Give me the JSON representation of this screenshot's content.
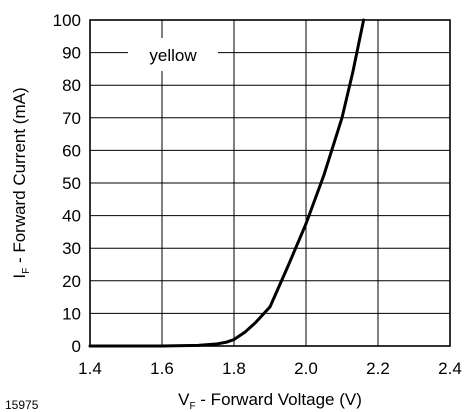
{
  "figure_number": "15975",
  "chart_data": {
    "type": "line",
    "xlabel": {
      "symbol": "V",
      "subscript": "F",
      "text": " - Forward Voltage (V)"
    },
    "ylabel": {
      "symbol": "I",
      "subscript": "F",
      "text": " - Forward Current (mA)"
    },
    "xlim": [
      1.4,
      2.4
    ],
    "ylim": [
      0,
      100
    ],
    "x_ticks": [
      "1.4",
      "1.6",
      "1.8",
      "2.0",
      "2.2",
      "2.4"
    ],
    "y_ticks": [
      "0",
      "10",
      "20",
      "30",
      "40",
      "50",
      "60",
      "70",
      "80",
      "90",
      "100"
    ],
    "grid": true,
    "legend": "top-left",
    "series": [
      {
        "name": "yellow",
        "color": "#000000",
        "x": [
          1.4,
          1.6,
          1.7,
          1.75,
          1.78,
          1.8,
          1.83,
          1.86,
          1.9,
          1.95,
          2.0,
          2.05,
          2.1,
          2.13,
          2.16
        ],
        "y": [
          0,
          0,
          0.2,
          0.6,
          1.2,
          2.0,
          4.2,
          7.2,
          12.0,
          24.5,
          37.5,
          52.5,
          70.0,
          84.0,
          100.0
        ]
      }
    ]
  }
}
